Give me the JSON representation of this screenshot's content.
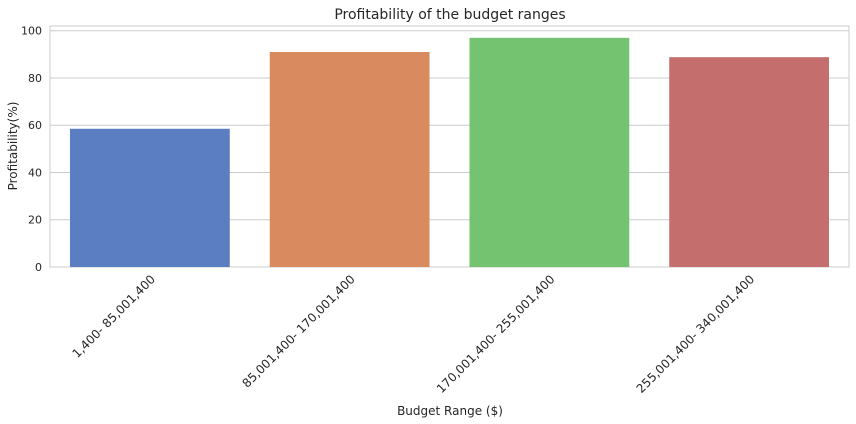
{
  "chart_data": {
    "type": "bar",
    "title": "Profitability of the budget ranges",
    "xlabel": "Budget Range ($)",
    "ylabel": "Profitability(%)",
    "categories": [
      "1,400- 85,001,400",
      "85,001,400- 170,001,400",
      "170,001,400- 255,001,400",
      "255,001,400- 340,001,400"
    ],
    "values": [
      58.5,
      91,
      97,
      88.8
    ],
    "colors": [
      "#5b7ec2",
      "#d98b5f",
      "#73c370",
      "#c46e6e"
    ],
    "ylim": [
      0,
      102
    ],
    "yticks": [
      0,
      20,
      40,
      60,
      80,
      100
    ],
    "grid": true,
    "grid_axis": "y",
    "legend": "none"
  }
}
